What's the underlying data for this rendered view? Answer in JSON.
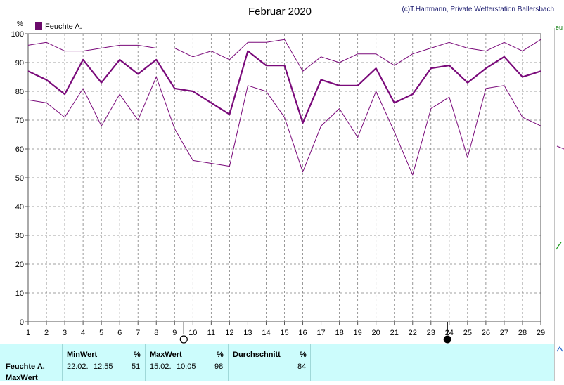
{
  "title": "Februar 2020",
  "copyright": "(c)T.Hartmann, Private Wetterstation Ballersbach",
  "chart_data": {
    "type": "line",
    "unit": "%",
    "legend": "Feuchte A.",
    "x": [
      1,
      2,
      3,
      4,
      5,
      6,
      7,
      8,
      9,
      10,
      11,
      12,
      13,
      14,
      15,
      16,
      17,
      18,
      19,
      20,
      21,
      22,
      23,
      24,
      25,
      26,
      27,
      28,
      29
    ],
    "ylim": [
      0,
      100
    ],
    "yticks": [
      0,
      10,
      20,
      30,
      40,
      50,
      60,
      70,
      80,
      90,
      100
    ],
    "grid": true,
    "legend_position": "top-left",
    "series": [
      {
        "role": "max",
        "width": 1,
        "values": [
          96,
          97,
          94,
          94,
          95,
          96,
          96,
          95,
          95,
          92,
          94,
          91,
          97,
          97,
          98,
          87,
          92,
          90,
          93,
          93,
          89,
          93,
          95,
          97,
          95,
          94,
          97,
          94,
          98
        ]
      },
      {
        "role": "mean",
        "width": 2.2,
        "values": [
          87,
          84,
          79,
          91,
          83,
          91,
          86,
          91,
          81,
          80,
          76,
          72,
          94,
          89,
          89,
          69,
          84,
          82,
          82,
          88,
          76,
          79,
          88,
          89,
          83,
          88,
          92,
          85,
          87
        ]
      },
      {
        "role": "min",
        "width": 1,
        "values": [
          77,
          76,
          71,
          81,
          68,
          79,
          70,
          85,
          67,
          56,
          55,
          54,
          82,
          80,
          71,
          52,
          68,
          74,
          64,
          80,
          66,
          51,
          74,
          78,
          57,
          81,
          82,
          71,
          68
        ]
      }
    ],
    "markers": [
      {
        "x": 9.5,
        "type": "full-moon"
      },
      {
        "x": 23.9,
        "type": "new-moon"
      }
    ]
  },
  "colors": {
    "series": "#7a0a7a",
    "legend_box": "#6b0a6b",
    "grid": "#808080",
    "axis": "#555555",
    "panel": "#ccfcfc"
  },
  "stats": {
    "row_label_1": "Feuchte A.",
    "row_label_2": "MaxWert",
    "min": {
      "header": "MinWert",
      "unit": "%",
      "date": "22.02.",
      "time": "12:55",
      "value": "51"
    },
    "max": {
      "header": "MaxWert",
      "unit": "%",
      "date": "15.02.",
      "time": "10:05",
      "value": "98"
    },
    "avg": {
      "header": "Durchschnitt",
      "unit": "%",
      "value": "84"
    }
  }
}
